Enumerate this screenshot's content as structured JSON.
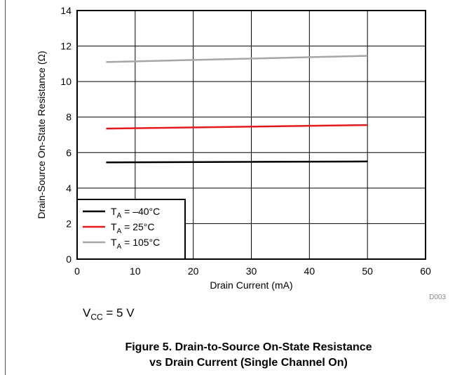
{
  "chart_data": {
    "type": "line",
    "xlabel": "Drain Current (mA)",
    "ylabel": "Drain-Source On-State Resistance (Ω)",
    "xlim": [
      0,
      60
    ],
    "ylim": [
      0,
      14
    ],
    "xticks": [
      0,
      10,
      20,
      30,
      40,
      50,
      60
    ],
    "yticks": [
      0,
      2,
      4,
      6,
      8,
      10,
      12,
      14
    ],
    "grid": true,
    "legend_position": "bottom-left",
    "series": [
      {
        "name": "TA = –40°C",
        "name_main": "T",
        "name_sub": "A",
        "name_rest": " = –40°C",
        "color": "#000000",
        "x": [
          5,
          50
        ],
        "y": [
          5.45,
          5.5
        ]
      },
      {
        "name": "TA = 25°C",
        "name_main": "T",
        "name_sub": "A",
        "name_rest": " = 25°C",
        "color": "#e31a1c",
        "x": [
          5,
          50
        ],
        "y": [
          7.35,
          7.55
        ]
      },
      {
        "name": "TA = 105°C",
        "name_main": "T",
        "name_sub": "A",
        "name_rest": " = 105°C",
        "color": "#a6a6a6",
        "x": [
          5,
          50
        ],
        "y": [
          11.1,
          11.45
        ]
      }
    ],
    "code": "D003"
  },
  "condition": {
    "main": "V",
    "sub": "CC",
    "rest": " = 5 V"
  },
  "caption": {
    "line1": "Figure 5. Drain-to-Source On-State Resistance",
    "line2": "vs Drain Current (Single Channel On)"
  }
}
